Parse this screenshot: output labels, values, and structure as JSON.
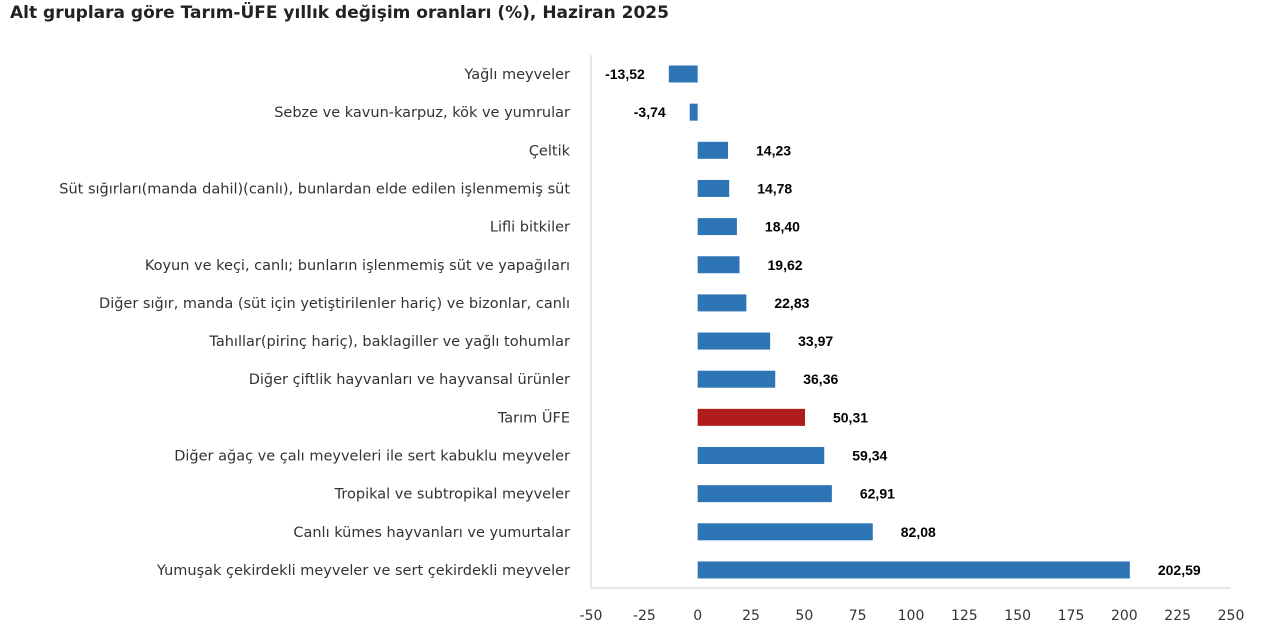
{
  "chart_data": {
    "type": "bar",
    "orientation": "horizontal",
    "title": "Alt gruplara göre Tarım-ÜFE yıllık değişim oranları (%), Haziran 2025",
    "categories": [
      "Yağlı meyveler",
      "Sebze ve kavun-karpuz, kök ve yumrular",
      "Çeltik",
      "Süt sığırları(manda dahil)(canlı), bunlardan elde edilen işlenmemiş süt",
      "Lifli bitkiler",
      "Koyun ve keçi, canlı; bunların işlenmemiş süt ve yapağıları",
      "Diğer sığır, manda (süt için yetiştirilenler hariç) ve bizonlar, canlı",
      "Tahıllar(pirinç hariç), baklagiller ve yağlı tohumlar",
      "Diğer çiftlik hayvanları ve hayvansal ürünler",
      "Tarım ÜFE",
      "Diğer ağaç ve çalı meyveleri ile sert kabuklu meyveler",
      "Tropikal ve subtropikal meyveler",
      "Canlı kümes hayvanları ve yumurtalar",
      "Yumuşak çekirdekli meyveler ve sert çekirdekli meyveler"
    ],
    "values": [
      -13.52,
      -3.74,
      14.23,
      14.78,
      18.4,
      19.62,
      22.83,
      33.97,
      36.36,
      50.31,
      59.34,
      62.91,
      82.08,
      202.59
    ],
    "value_labels": [
      "-13,52",
      "-3,74",
      "14,23",
      "14,78",
      "18,40",
      "19,62",
      "22,83",
      "33,97",
      "36,36",
      "50,31",
      "59,34",
      "62,91",
      "82,08",
      "202,59"
    ],
    "highlight_category": "Tarım ÜFE",
    "colors": {
      "bar": "#2e75b6",
      "highlight": "#b01c1c"
    },
    "xlim": [
      -50,
      250
    ],
    "xticks": [
      -50,
      -25,
      0,
      25,
      50,
      75,
      100,
      125,
      150,
      175,
      200,
      225,
      250
    ],
    "xlabel": "",
    "ylabel": "",
    "grid": false,
    "legend": "none"
  }
}
